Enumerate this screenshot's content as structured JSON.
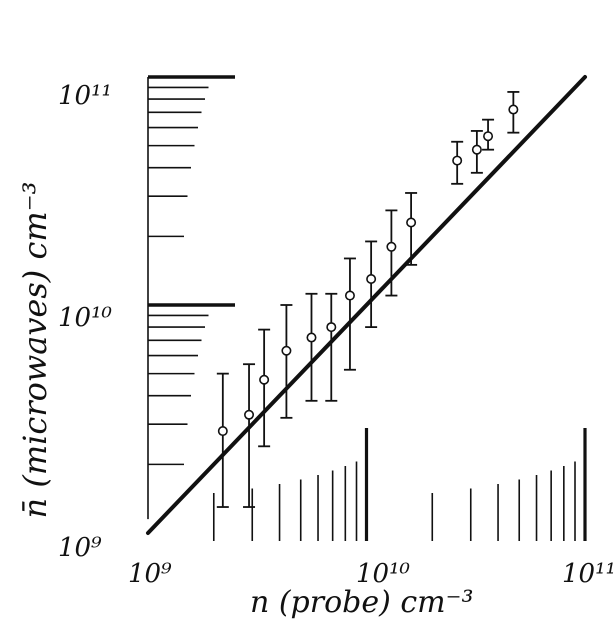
{
  "chart_data": {
    "type": "scatter",
    "title": "",
    "xlabel": "n (probe) cm⁻³",
    "ylabel": "n̄ (microwaves) cm⁻³",
    "x_scale": "log",
    "y_scale": "log",
    "xlim": [
      1000000000.0,
      100000000000.0
    ],
    "ylim": [
      1000000000.0,
      100000000000.0
    ],
    "x_tick_labels": [
      "10⁹",
      "10¹⁰",
      "10¹¹"
    ],
    "y_tick_labels": [
      "10⁹",
      "10¹⁰",
      "10¹¹"
    ],
    "grid": false,
    "reference_line": {
      "label": "",
      "slope": 1,
      "from": [
        1000000000.0,
        1000000000.0
      ],
      "to": [
        100000000000.0,
        100000000000.0
      ]
    },
    "series": [
      {
        "name": "",
        "marker": "open-circle",
        "error_bars": true,
        "points": [
          {
            "x": 2200000000.0,
            "y": 2800000000.0,
            "y_low": 1300000000.0,
            "y_high": 5000000000.0
          },
          {
            "x": 2900000000.0,
            "y": 3300000000.0,
            "y_low": 1300000000.0,
            "y_high": 5500000000.0
          },
          {
            "x": 3400000000.0,
            "y": 4700000000.0,
            "y_low": 2400000000.0,
            "y_high": 7800000000.0
          },
          {
            "x": 4300000000.0,
            "y": 6300000000.0,
            "y_low": 3200000000.0,
            "y_high": 10000000000.0
          },
          {
            "x": 5600000000.0,
            "y": 7200000000.0,
            "y_low": 3800000000.0,
            "y_high": 11200000000.0
          },
          {
            "x": 6900000000.0,
            "y": 8000000000.0,
            "y_low": 3800000000.0,
            "y_high": 11200000000.0
          },
          {
            "x": 8400000000.0,
            "y": 11000000000.0,
            "y_low": 5200000000.0,
            "y_high": 16000000000.0
          },
          {
            "x": 10500000000.0,
            "y": 13000000000.0,
            "y_low": 8000000000.0,
            "y_high": 19000000000.0
          },
          {
            "x": 13000000000.0,
            "y": 18000000000.0,
            "y_low": 11000000000.0,
            "y_high": 26000000000.0
          },
          {
            "x": 16000000000.0,
            "y": 23000000000.0,
            "y_low": 15000000000.0,
            "y_high": 31000000000.0
          },
          {
            "x": 26000000000.0,
            "y": 43000000000.0,
            "y_low": 34000000000.0,
            "y_high": 52000000000.0
          },
          {
            "x": 32000000000.0,
            "y": 48000000000.0,
            "y_low": 38000000000.0,
            "y_high": 58000000000.0
          },
          {
            "x": 36000000000.0,
            "y": 55000000000.0,
            "y_low": 48000000000.0,
            "y_high": 65000000000.0
          },
          {
            "x": 47000000000.0,
            "y": 72000000000.0,
            "y_low": 57000000000.0,
            "y_high": 86000000000.0
          }
        ]
      }
    ]
  }
}
